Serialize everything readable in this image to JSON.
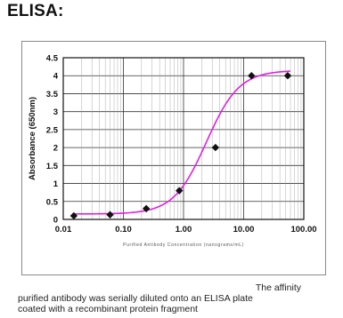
{
  "heading": "ELISA:",
  "caption": {
    "line1": "The affinity",
    "line2": "purified antibody was serially diluted onto an ELISA plate",
    "line3": "coated with a recombinant protein fragment"
  },
  "colors": {
    "curve": "#e020e0",
    "points": "#111111",
    "grid": "#333333"
  },
  "chart_data": {
    "type": "scatter",
    "title": "",
    "xlabel": "Purified Antibody Concentration (nanograms/mL)",
    "ylabel": "Absorbance (650nm)",
    "x_scale": "log",
    "xlim": [
      0.01,
      100
    ],
    "ylim": [
      0,
      4.5
    ],
    "x_ticks": [
      0.01,
      0.1,
      1,
      10,
      100
    ],
    "x_tick_labels": [
      "0.01",
      "0.10",
      "1.00",
      "10.00",
      "100.00"
    ],
    "y_ticks": [
      0,
      0.5,
      1,
      1.5,
      2,
      2.5,
      3,
      3.5,
      4,
      4.5
    ],
    "y_tick_labels": [
      "0",
      "0.5",
      "1",
      "1.5",
      "2",
      "2.5",
      "3",
      "3.5",
      "4",
      "4.5"
    ],
    "grid": true,
    "legend": "none",
    "series": [
      {
        "x": [
          0.015,
          0.06,
          0.24,
          0.85,
          3.4,
          13.5,
          54
        ],
        "y": [
          0.1,
          0.13,
          0.3,
          0.8,
          2.0,
          4.0,
          4.0
        ]
      }
    ],
    "fit_curve": {
      "type": "sigmoid",
      "bottom": 0.15,
      "top": 4.15,
      "ec50": 2.4,
      "hill": 1.6
    }
  }
}
